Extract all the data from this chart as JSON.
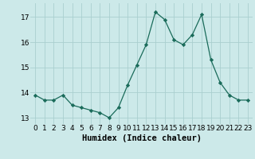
{
  "x": [
    0,
    1,
    2,
    3,
    4,
    5,
    6,
    7,
    8,
    9,
    10,
    11,
    12,
    13,
    14,
    15,
    16,
    17,
    18,
    19,
    20,
    21,
    22,
    23
  ],
  "y": [
    13.9,
    13.7,
    13.7,
    13.9,
    13.5,
    13.4,
    13.3,
    13.2,
    13.0,
    13.4,
    14.3,
    15.1,
    15.9,
    17.2,
    16.9,
    16.1,
    15.9,
    16.3,
    17.1,
    15.3,
    14.4,
    13.9,
    13.7,
    13.7
  ],
  "line_color": "#1a6b5a",
  "marker": "D",
  "marker_size": 2.2,
  "bg_color": "#cce9e9",
  "grid_color": "#aacfcf",
  "xlabel": "Humidex (Indice chaleur)",
  "ylim": [
    12.75,
    17.55
  ],
  "yticks": [
    13,
    14,
    15,
    16,
    17
  ],
  "xticks": [
    0,
    1,
    2,
    3,
    4,
    5,
    6,
    7,
    8,
    9,
    10,
    11,
    12,
    13,
    14,
    15,
    16,
    17,
    18,
    19,
    20,
    21,
    22,
    23
  ],
  "tick_fontsize": 6.5,
  "xlabel_fontsize": 7.5
}
